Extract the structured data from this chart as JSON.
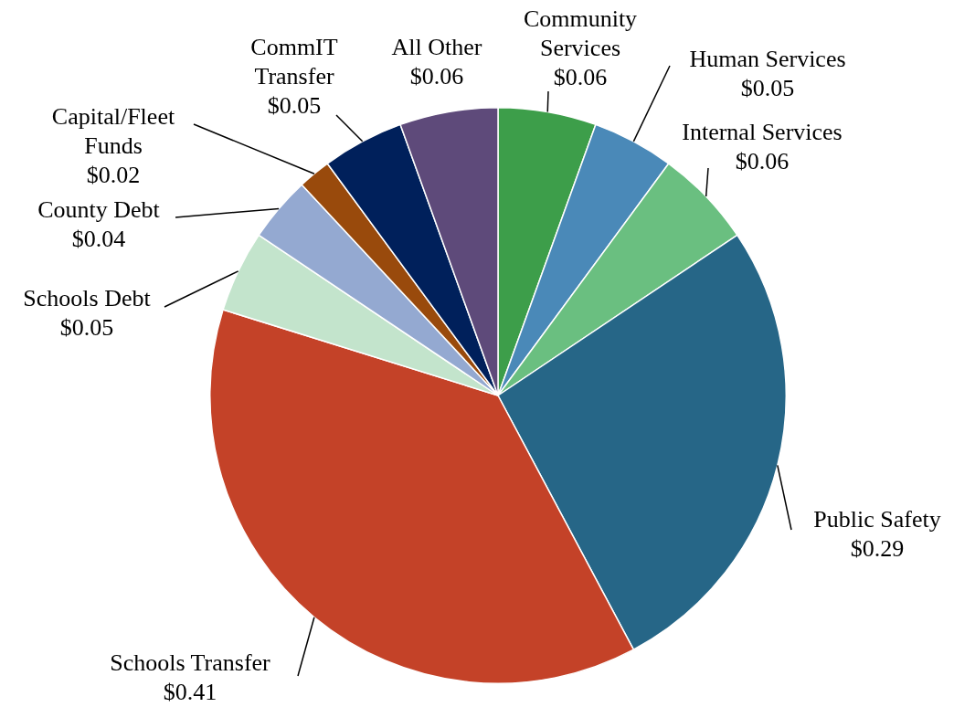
{
  "chart_data": {
    "type": "pie",
    "categories": [
      "Community Services",
      "Human Services",
      "Internal Services",
      "Public Safety",
      "Schools Transfer",
      "Schools Debt",
      "County Debt",
      "Capital/Fleet Funds",
      "CommIT Transfer",
      "All Other"
    ],
    "values": [
      0.06,
      0.05,
      0.06,
      0.29,
      0.41,
      0.05,
      0.04,
      0.02,
      0.05,
      0.06
    ],
    "value_labels": [
      "$0.06",
      "$0.05",
      "$0.06",
      "$0.29",
      "$0.41",
      "$0.05",
      "$0.04",
      "$0.02",
      "$0.05",
      "$0.06"
    ],
    "colors": [
      "#3d9e4a",
      "#4a89b8",
      "#6abf80",
      "#266687",
      "#c44228",
      "#c3e4cc",
      "#94a9d1",
      "#994a0c",
      "#00205b",
      "#5e4a7a"
    ],
    "legend": false
  }
}
